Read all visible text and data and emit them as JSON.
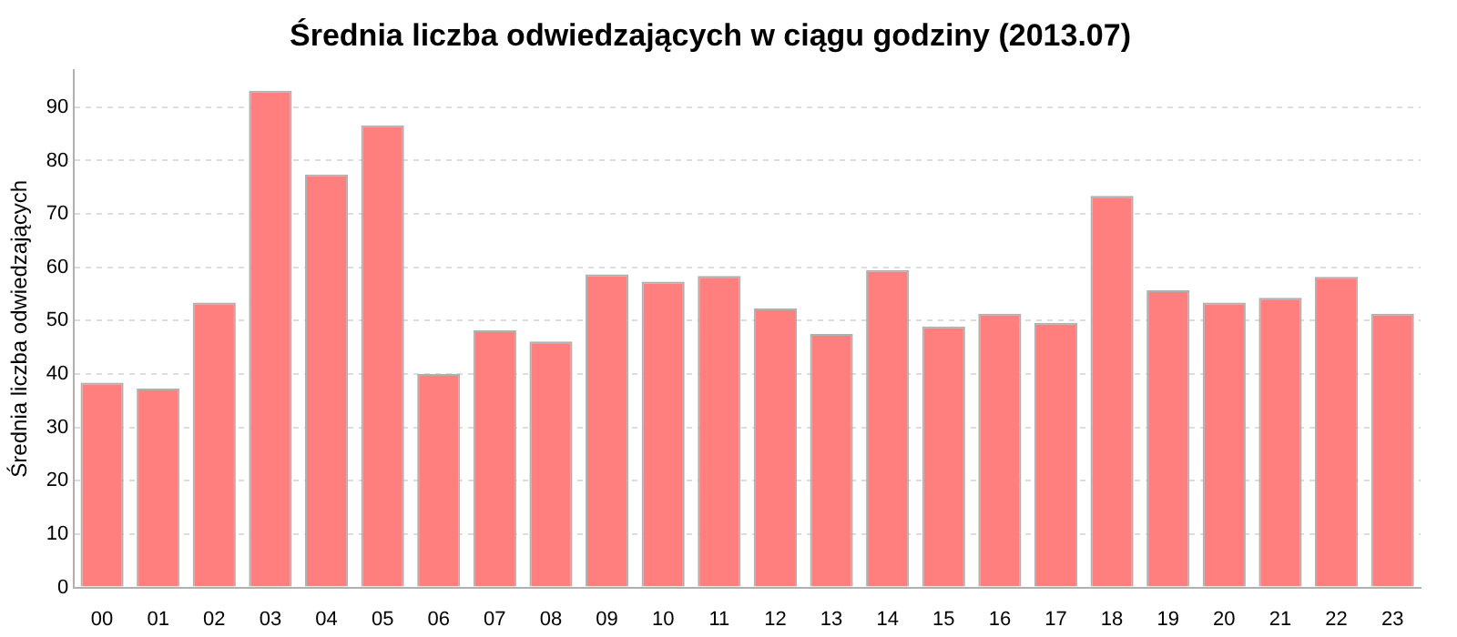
{
  "chart_data": {
    "type": "bar",
    "title": "Średnia liczba odwiedzających w ciągu godziny (2013.07)",
    "ylabel": "Średnia liczba odwiedzających",
    "categories": [
      "00",
      "01",
      "02",
      "03",
      "04",
      "05",
      "06",
      "07",
      "08",
      "09",
      "10",
      "11",
      "12",
      "13",
      "14",
      "15",
      "16",
      "17",
      "18",
      "19",
      "20",
      "21",
      "22",
      "23"
    ],
    "values": [
      38.4,
      37.3,
      53.4,
      93.1,
      77.4,
      86.6,
      40,
      48.2,
      46.1,
      58.7,
      57.3,
      58.4,
      52.3,
      47.5,
      59.5,
      48.9,
      51.3,
      49.6,
      73.4,
      55.7,
      53.4,
      54.3,
      58.2,
      51.3
    ],
    "color": "#ff7f7f",
    "ylim": [
      0,
      97
    ],
    "yticks": [
      0,
      10,
      20,
      30,
      40,
      50,
      60,
      70,
      80,
      90
    ],
    "grid": "y",
    "legend": false
  }
}
